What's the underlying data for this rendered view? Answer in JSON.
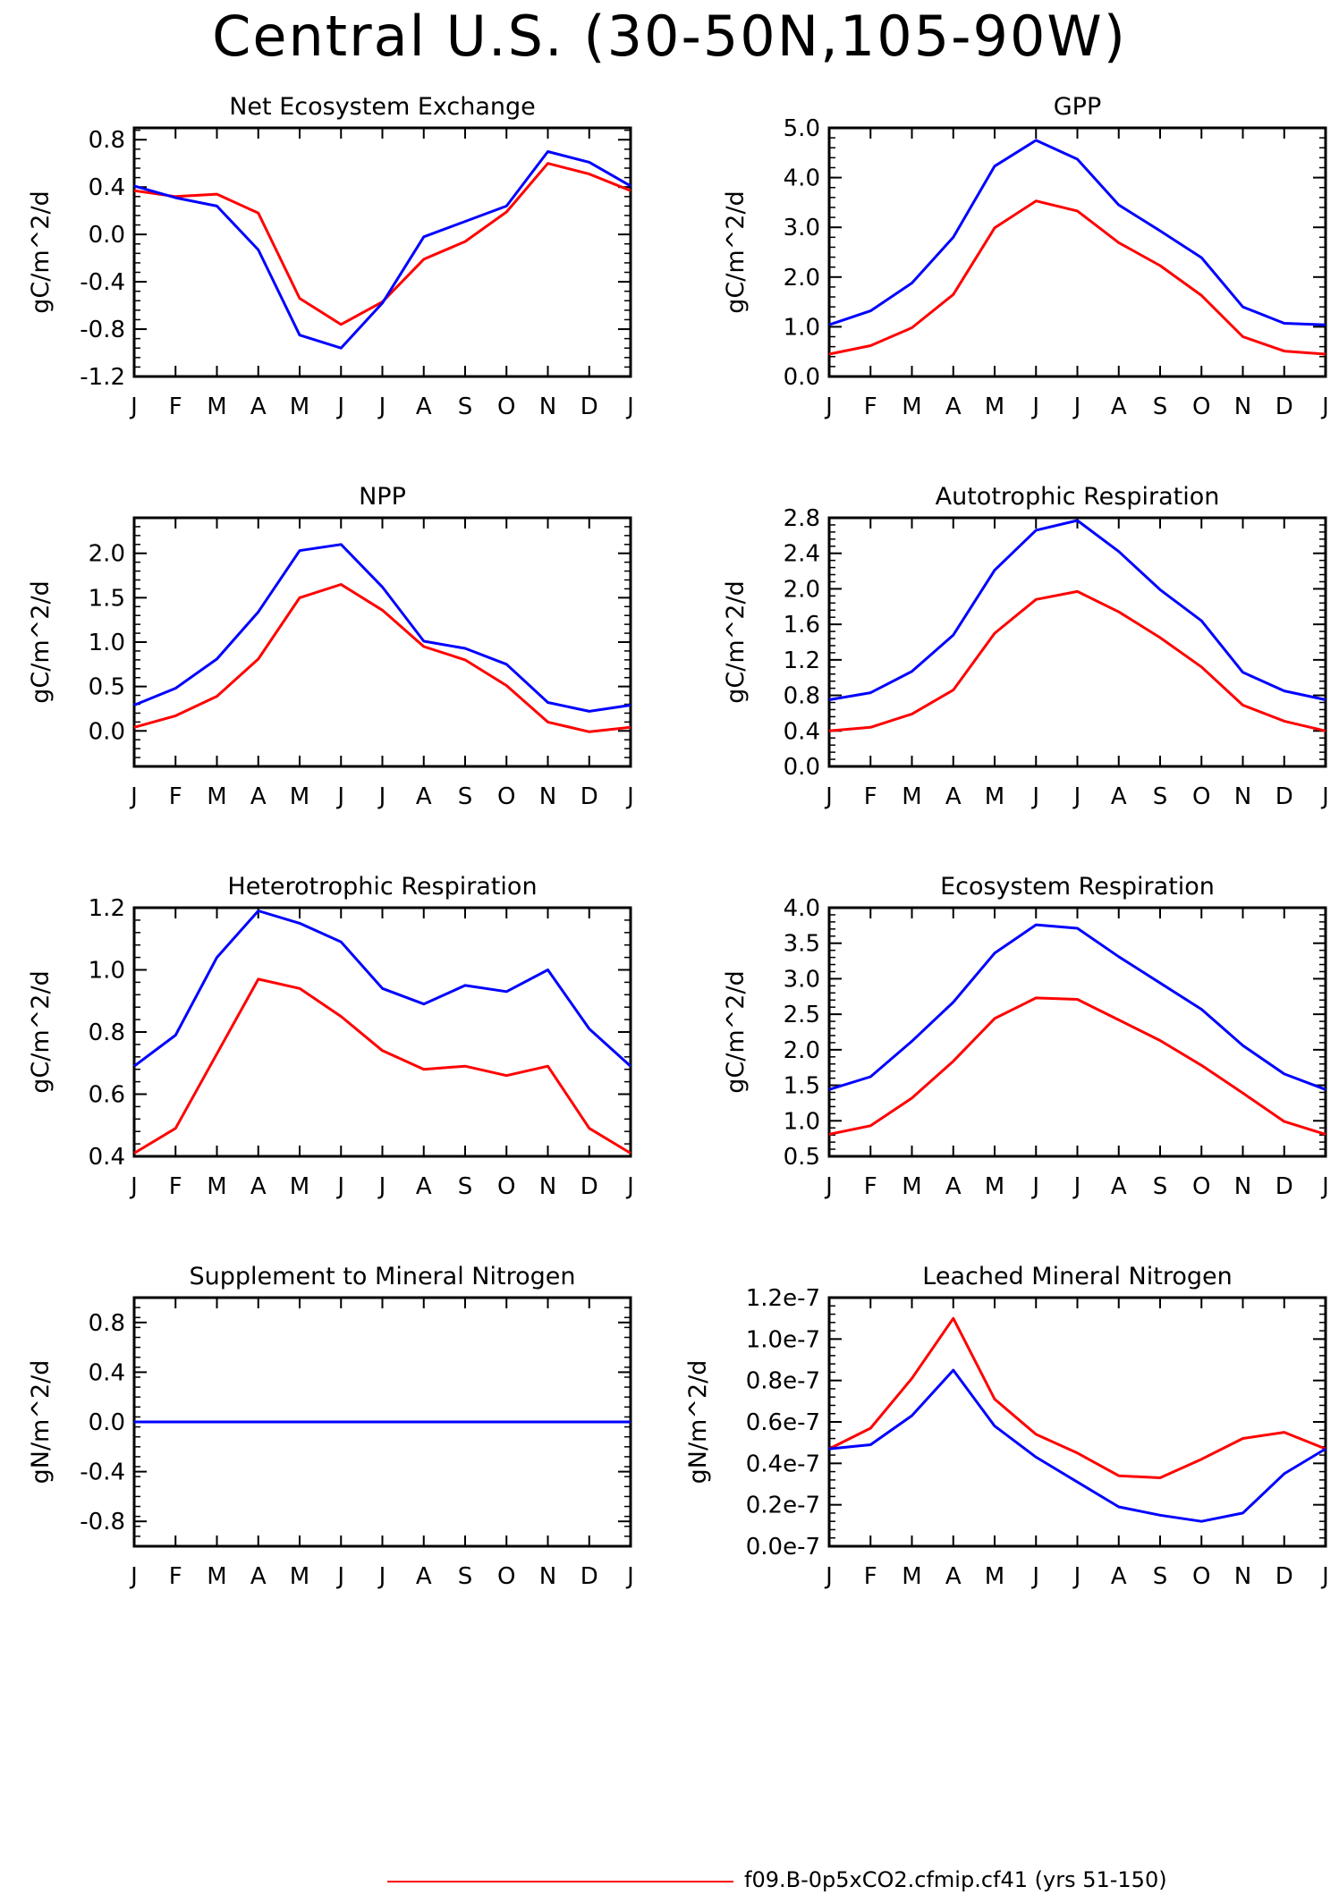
{
  "title": "Central U.S. (30-50N,105-90W)",
  "legend": {
    "entries": [
      {
        "label": "f09.B-0p5xCO2.cfmip.cf41 (yrs 51-150)",
        "color": "#ff0000"
      }
    ]
  },
  "colors": {
    "series_red": "#ff0000",
    "series_blue": "#0000ff"
  },
  "chart_data": [
    {
      "type": "line",
      "title": "Net Ecosystem Exchange",
      "ylabel": "gC/m^2/d",
      "categories": [
        "J",
        "F",
        "M",
        "A",
        "M",
        "J",
        "J",
        "A",
        "S",
        "O",
        "N",
        "D",
        "J"
      ],
      "ylim": [
        -1.2,
        0.9
      ],
      "yticks": [
        -1.2,
        -0.8,
        -0.4,
        0.0,
        0.4,
        0.8
      ],
      "ytick_labels": [
        "-1.2",
        "-0.8",
        "-0.4",
        "0.0",
        "0.4",
        "0.8"
      ],
      "series": [
        {
          "color": "#ff0000",
          "values": [
            0.37,
            0.32,
            0.34,
            0.18,
            -0.54,
            -0.76,
            -0.57,
            -0.21,
            -0.06,
            0.19,
            0.6,
            0.51,
            0.37
          ]
        },
        {
          "color": "#0000ff",
          "values": [
            0.41,
            0.31,
            0.24,
            -0.13,
            -0.85,
            -0.96,
            -0.58,
            -0.02,
            0.11,
            0.24,
            0.7,
            0.61,
            0.41
          ]
        }
      ]
    },
    {
      "type": "line",
      "title": "GPP",
      "ylabel": "gC/m^2/d",
      "categories": [
        "J",
        "F",
        "M",
        "A",
        "M",
        "J",
        "J",
        "A",
        "S",
        "O",
        "N",
        "D",
        "J"
      ],
      "ylim": [
        0.0,
        5.0
      ],
      "yticks": [
        0.0,
        1.0,
        2.0,
        3.0,
        4.0,
        5.0
      ],
      "ytick_labels": [
        "0.0",
        "1.0",
        "2.0",
        "3.0",
        "4.0",
        "5.0"
      ],
      "series": [
        {
          "color": "#ff0000",
          "values": [
            0.45,
            0.62,
            0.98,
            1.65,
            2.99,
            3.53,
            3.33,
            2.69,
            2.23,
            1.63,
            0.8,
            0.51,
            0.45
          ]
        },
        {
          "color": "#0000ff",
          "values": [
            1.04,
            1.32,
            1.88,
            2.8,
            4.23,
            4.75,
            4.37,
            3.45,
            2.93,
            2.39,
            1.4,
            1.07,
            1.04
          ]
        }
      ]
    },
    {
      "type": "line",
      "title": "NPP",
      "ylabel": "gC/m^2/d",
      "categories": [
        "J",
        "F",
        "M",
        "A",
        "M",
        "J",
        "J",
        "A",
        "S",
        "O",
        "N",
        "D",
        "J"
      ],
      "ylim": [
        -0.4,
        2.4
      ],
      "yticks": [
        0.0,
        0.5,
        1.0,
        1.5,
        2.0
      ],
      "ytick_labels": [
        "0.0",
        "0.5",
        "1.0",
        "1.5",
        "2.0"
      ],
      "series": [
        {
          "color": "#ff0000",
          "values": [
            0.04,
            0.17,
            0.39,
            0.81,
            1.5,
            1.65,
            1.36,
            0.95,
            0.8,
            0.51,
            0.1,
            -0.01,
            0.04
          ]
        },
        {
          "color": "#0000ff",
          "values": [
            0.29,
            0.48,
            0.81,
            1.34,
            2.03,
            2.1,
            1.62,
            1.01,
            0.93,
            0.75,
            0.32,
            0.22,
            0.29
          ]
        }
      ]
    },
    {
      "type": "line",
      "title": "Autotrophic Respiration",
      "ylabel": "gC/m^2/d",
      "categories": [
        "J",
        "F",
        "M",
        "A",
        "M",
        "J",
        "J",
        "A",
        "S",
        "O",
        "N",
        "D",
        "J"
      ],
      "ylim": [
        0.0,
        2.8
      ],
      "yticks": [
        0.0,
        0.4,
        0.8,
        1.2,
        1.6,
        2.0,
        2.4,
        2.8
      ],
      "ytick_labels": [
        "0.0",
        "0.4",
        "0.8",
        "1.2",
        "1.6",
        "2.0",
        "2.4",
        "2.8"
      ],
      "series": [
        {
          "color": "#ff0000",
          "values": [
            0.4,
            0.44,
            0.59,
            0.86,
            1.5,
            1.88,
            1.97,
            1.74,
            1.45,
            1.12,
            0.69,
            0.51,
            0.4
          ]
        },
        {
          "color": "#0000ff",
          "values": [
            0.75,
            0.83,
            1.07,
            1.48,
            2.21,
            2.66,
            2.77,
            2.42,
            1.99,
            1.64,
            1.06,
            0.85,
            0.75
          ]
        }
      ]
    },
    {
      "type": "line",
      "title": "Heterotrophic Respiration",
      "ylabel": "gC/m^2/d",
      "categories": [
        "J",
        "F",
        "M",
        "A",
        "M",
        "J",
        "J",
        "A",
        "S",
        "O",
        "N",
        "D",
        "J"
      ],
      "ylim": [
        0.4,
        1.2
      ],
      "yticks": [
        0.4,
        0.6,
        0.8,
        1.0,
        1.2
      ],
      "ytick_labels": [
        "0.4",
        "0.6",
        "0.8",
        "1.0",
        "1.2"
      ],
      "series": [
        {
          "color": "#ff0000",
          "values": [
            0.41,
            0.49,
            0.73,
            0.97,
            0.94,
            0.85,
            0.74,
            0.68,
            0.69,
            0.66,
            0.69,
            0.49,
            0.41
          ]
        },
        {
          "color": "#0000ff",
          "values": [
            0.69,
            0.79,
            1.04,
            1.19,
            1.15,
            1.09,
            0.94,
            0.89,
            0.95,
            0.93,
            1.0,
            0.81,
            0.69
          ]
        }
      ]
    },
    {
      "type": "line",
      "title": "Ecosystem Respiration",
      "ylabel": "gC/m^2/d",
      "categories": [
        "J",
        "F",
        "M",
        "A",
        "M",
        "J",
        "J",
        "A",
        "S",
        "O",
        "N",
        "D",
        "J"
      ],
      "ylim": [
        0.5,
        4.0
      ],
      "yticks": [
        0.5,
        1.0,
        1.5,
        2.0,
        2.5,
        3.0,
        3.5,
        4.0
      ],
      "ytick_labels": [
        "0.5",
        "1.0",
        "1.5",
        "2.0",
        "2.5",
        "3.0",
        "3.5",
        "4.0"
      ],
      "series": [
        {
          "color": "#ff0000",
          "values": [
            0.81,
            0.93,
            1.32,
            1.84,
            2.44,
            2.73,
            2.71,
            2.42,
            2.13,
            1.78,
            1.39,
            0.99,
            0.81
          ]
        },
        {
          "color": "#0000ff",
          "values": [
            1.44,
            1.62,
            2.12,
            2.67,
            3.36,
            3.76,
            3.71,
            3.31,
            2.94,
            2.57,
            2.06,
            1.66,
            1.44
          ]
        }
      ]
    },
    {
      "type": "line",
      "title": "Supplement to Mineral Nitrogen",
      "ylabel": "gN/m^2/d",
      "categories": [
        "J",
        "F",
        "M",
        "A",
        "M",
        "J",
        "J",
        "A",
        "S",
        "O",
        "N",
        "D",
        "J"
      ],
      "ylim": [
        -1.0,
        1.0
      ],
      "yticks": [
        -0.8,
        -0.4,
        0.0,
        0.4,
        0.8
      ],
      "ytick_labels": [
        "-0.8",
        "-0.4",
        "0.0",
        "0.4",
        "0.8"
      ],
      "series": [
        {
          "color": "#ff0000",
          "values": [
            0,
            0,
            0,
            0,
            0,
            0,
            0,
            0,
            0,
            0,
            0,
            0,
            0
          ]
        },
        {
          "color": "#0000ff",
          "values": [
            0,
            0,
            0,
            0,
            0,
            0,
            0,
            0,
            0,
            0,
            0,
            0,
            0
          ]
        }
      ]
    },
    {
      "type": "line",
      "title": "Leached Mineral Nitrogen",
      "ylabel": "gN/m^2/d",
      "categories": [
        "J",
        "F",
        "M",
        "A",
        "M",
        "J",
        "J",
        "A",
        "S",
        "O",
        "N",
        "D",
        "J"
      ],
      "ylim": [
        0.0,
        1.2e-07
      ],
      "yticks": [
        0.0,
        2e-08,
        4e-08,
        6e-08,
        8e-08,
        1e-07,
        1.2e-07
      ],
      "ytick_labels": [
        "0.0e-7",
        "0.2e-7",
        "0.4e-7",
        "0.6e-7",
        "0.8e-7",
        "1.0e-7",
        "1.2e-7"
      ],
      "series": [
        {
          "color": "#ff0000",
          "values": [
            4.7e-08,
            5.7e-08,
            8.1e-08,
            1.1e-07,
            7.1e-08,
            5.4e-08,
            4.5e-08,
            3.4e-08,
            3.3e-08,
            4.2e-08,
            5.2e-08,
            5.5e-08,
            4.7e-08
          ]
        },
        {
          "color": "#0000ff",
          "values": [
            4.7e-08,
            4.9e-08,
            6.3e-08,
            8.5e-08,
            5.8e-08,
            4.3e-08,
            3.1e-08,
            1.9e-08,
            1.5e-08,
            1.2e-08,
            1.6e-08,
            3.5e-08,
            4.7e-08
          ]
        }
      ]
    }
  ]
}
